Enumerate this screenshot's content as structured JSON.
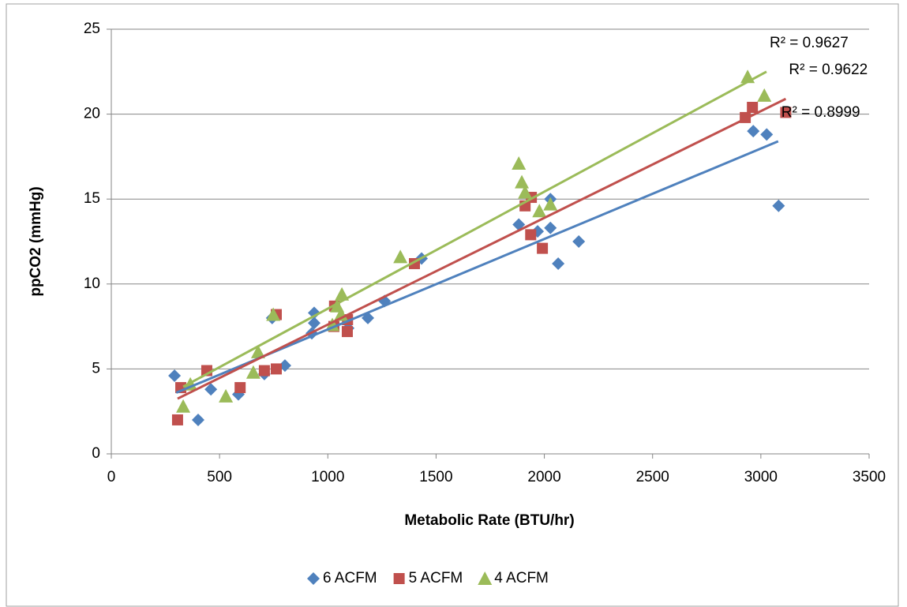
{
  "chart_data": {
    "type": "scatter",
    "xlabel": "Metabolic Rate (BTU/hr)",
    "ylabel": "ppCO2 (mmHg)",
    "xlim": [
      0,
      3500
    ],
    "ylim": [
      0,
      25
    ],
    "xticks": [
      0,
      500,
      1000,
      1500,
      2000,
      2500,
      3000,
      3500
    ],
    "yticks": [
      0,
      5,
      10,
      15,
      20,
      25
    ],
    "grid": true,
    "legend": "bottom",
    "series": [
      {
        "name": "6 ACFM",
        "color": "#4f81bd",
        "marker": "diamond",
        "x": [
          292,
          401,
          460,
          587,
          707,
          802,
          743,
          926,
          937,
          937,
          1094,
          1185,
          1262,
          1433,
          1882,
          1969,
          2028,
          2028,
          2064,
          2159,
          2965,
          3027,
          3082
        ],
        "values": [
          4.6,
          2.0,
          3.8,
          3.5,
          4.7,
          5.2,
          8.0,
          7.1,
          7.7,
          8.3,
          7.4,
          8.0,
          9.0,
          11.5,
          13.5,
          13.1,
          13.3,
          15.0,
          11.2,
          12.5,
          19.0,
          18.8,
          14.6
        ],
        "trendline": {
          "x": [
            300,
            3080
          ],
          "values": [
            3.6,
            18.4
          ],
          "label": "R² = 0.8999"
        }
      },
      {
        "name": "5 ACFM",
        "color": "#c0504d",
        "marker": "square",
        "x": [
          306,
          321,
          441,
          595,
          707,
          762,
          762,
          1028,
          1031,
          1091,
          1090,
          1400,
          1911,
          1940,
          1937,
          1991,
          2928,
          2961,
          3115
        ],
        "values": [
          2.0,
          3.9,
          4.9,
          3.9,
          4.9,
          5.0,
          8.2,
          7.5,
          8.7,
          7.9,
          7.2,
          11.2,
          14.6,
          15.1,
          12.9,
          12.1,
          19.8,
          20.4,
          20.1
        ],
        "trendline": {
          "x": [
            306,
            3115
          ],
          "values": [
            3.25,
            20.9
          ],
          "label": "R² = 0.9622"
        }
      },
      {
        "name": "4 ACFM",
        "color": "#9bbb59",
        "marker": "triangle",
        "x": [
          332,
          365,
          529,
          656,
          678,
          748,
          1021,
          1043,
          1061,
          1065,
          1335,
          1882,
          1896,
          1911,
          1977,
          2028,
          2939,
          3016
        ],
        "values": [
          2.8,
          4.1,
          3.4,
          4.8,
          6.0,
          8.2,
          7.6,
          8.7,
          8.2,
          9.4,
          11.6,
          17.1,
          16.0,
          15.4,
          14.3,
          14.7,
          22.2,
          21.1
        ],
        "trendline": {
          "x": [
            332,
            3026
          ],
          "values": [
            3.95,
            22.5
          ],
          "label": "R² = 0.9627"
        }
      }
    ]
  }
}
